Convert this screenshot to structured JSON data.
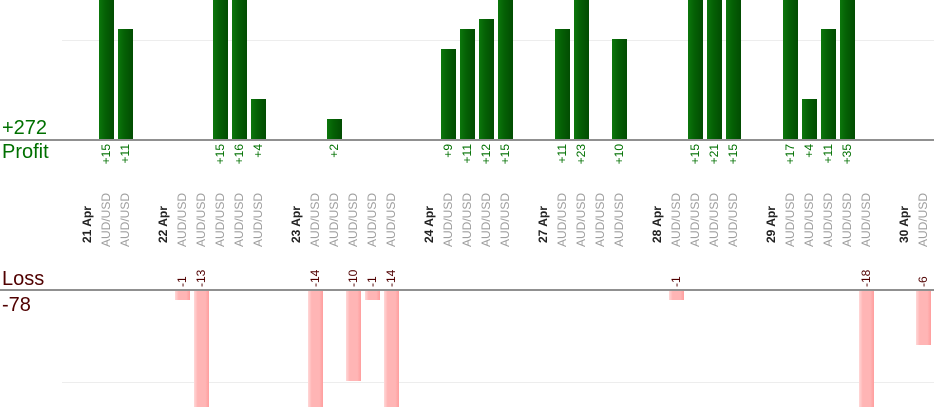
{
  "chart_data": {
    "type": "bar",
    "orientation": "vertical-columns-rotated-labels",
    "instrument": "AUD/USD",
    "panels": {
      "profit": {
        "axis_label": "Profit",
        "total_label": "+272",
        "total": 272,
        "gridline_at": 10,
        "bars_clipped_above": 14
      },
      "loss": {
        "axis_label": "Loss",
        "total_label": "-78",
        "total": -78,
        "gridline_at": -10,
        "bars_clipped_below": -13
      }
    },
    "groups": [
      {
        "date": "21 Apr",
        "values": [
          15,
          11
        ]
      },
      {
        "date": "22 Apr",
        "values": [
          -1,
          -13,
          15,
          16,
          4
        ]
      },
      {
        "date": "23 Apr",
        "values": [
          -14,
          2,
          -10,
          -1,
          -14
        ]
      },
      {
        "date": "24 Apr",
        "values": [
          9,
          11,
          12,
          15
        ]
      },
      {
        "date": "27 Apr",
        "values": [
          11,
          23,
          null,
          10
        ]
      },
      {
        "date": "28 Apr",
        "values": [
          -1,
          15,
          21,
          15
        ]
      },
      {
        "date": "29 Apr",
        "values": [
          17,
          4,
          11,
          35,
          -18
        ]
      },
      {
        "date": "30 Apr",
        "values": [
          -6
        ]
      }
    ],
    "legend": "none",
    "grid": "horizontal-light"
  },
  "colors": {
    "profit_bar": "#056105",
    "profit_bar_light": "#0c770c",
    "profit_bar_dark": "#024c02",
    "loss_bar": "#ffb5b5",
    "loss_bar_light": "#ffd8d8",
    "loss_bar_dark": "#ff9e9e",
    "profit_text": "#007000",
    "loss_text": "#500000",
    "date_text": "#212121",
    "instrument_text": "#9e9e9e",
    "axis_line": "#909090",
    "gridline": "#ededed",
    "background": "#ffffff"
  }
}
